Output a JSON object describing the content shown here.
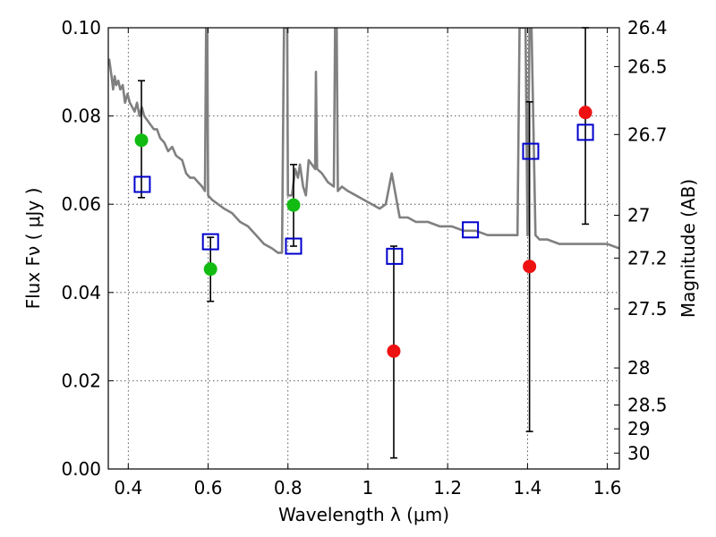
{
  "chart_data": {
    "type": "scatter",
    "title": "",
    "xlabel": "Wavelength  λ (μm)",
    "ylabel": "Flux  Fν  ( μJy )",
    "y2label": "Magnitude (AB)",
    "xlim": [
      0.35,
      1.63
    ],
    "ylim": [
      0.0,
      0.1
    ],
    "grid": true,
    "x_ticks": [
      0.4,
      0.6,
      0.8,
      1.0,
      1.2,
      1.4,
      1.6
    ],
    "x_tick_labels": [
      "0.4",
      "0.6",
      "0.8",
      "1",
      "1.2",
      "1.4",
      "1.6"
    ],
    "y_ticks": [
      0.0,
      0.02,
      0.04,
      0.06,
      0.08,
      0.1
    ],
    "y_tick_labels": [
      "0.00",
      "0.02",
      "0.04",
      "0.06",
      "0.08",
      "0.10"
    ],
    "mag_ticks": [
      {
        "flux": 0.1,
        "label": "26.4"
      },
      {
        "flux": 0.0912,
        "label": "26.5"
      },
      {
        "flux": 0.0758,
        "label": "26.7"
      },
      {
        "flux": 0.0575,
        "label": "27"
      },
      {
        "flux": 0.0478,
        "label": "27.2"
      },
      {
        "flux": 0.0363,
        "label": "27.5"
      },
      {
        "flux": 0.0229,
        "label": "28"
      },
      {
        "flux": 0.0145,
        "label": "28.5"
      },
      {
        "flux": 0.0091,
        "label": "29"
      },
      {
        "flux": 0.0036,
        "label": "30"
      }
    ],
    "colors": {
      "sed": "#808080",
      "detected": "#11bb11",
      "nondetected": "#ee1111",
      "model": "#0000cc",
      "errorbar": "#000000"
    },
    "sed_spectrum": [
      [
        0.352,
        0.093
      ],
      [
        0.358,
        0.089
      ],
      [
        0.362,
        0.086
      ],
      [
        0.366,
        0.089
      ],
      [
        0.37,
        0.087
      ],
      [
        0.375,
        0.088
      ],
      [
        0.38,
        0.086
      ],
      [
        0.386,
        0.087
      ],
      [
        0.392,
        0.083
      ],
      [
        0.398,
        0.085
      ],
      [
        0.404,
        0.083
      ],
      [
        0.41,
        0.082
      ],
      [
        0.416,
        0.081
      ],
      [
        0.422,
        0.083
      ],
      [
        0.428,
        0.08
      ],
      [
        0.434,
        0.082
      ],
      [
        0.44,
        0.08
      ],
      [
        0.448,
        0.079
      ],
      [
        0.456,
        0.078
      ],
      [
        0.464,
        0.077
      ],
      [
        0.472,
        0.077
      ],
      [
        0.48,
        0.075
      ],
      [
        0.49,
        0.074
      ],
      [
        0.5,
        0.072
      ],
      [
        0.51,
        0.073
      ],
      [
        0.52,
        0.071
      ],
      [
        0.535,
        0.07
      ],
      [
        0.545,
        0.067
      ],
      [
        0.555,
        0.066
      ],
      [
        0.565,
        0.066
      ],
      [
        0.575,
        0.065
      ],
      [
        0.585,
        0.064
      ],
      [
        0.592,
        0.063
      ],
      [
        0.595,
        0.1
      ],
      [
        0.598,
        0.1
      ],
      [
        0.6,
        0.062
      ],
      [
        0.61,
        0.061
      ],
      [
        0.625,
        0.06
      ],
      [
        0.64,
        0.059
      ],
      [
        0.66,
        0.058
      ],
      [
        0.68,
        0.056
      ],
      [
        0.7,
        0.055
      ],
      [
        0.72,
        0.053
      ],
      [
        0.74,
        0.051
      ],
      [
        0.76,
        0.05
      ],
      [
        0.775,
        0.049
      ],
      [
        0.785,
        0.049
      ],
      [
        0.79,
        0.1
      ],
      [
        0.798,
        0.1
      ],
      [
        0.8,
        0.062
      ],
      [
        0.81,
        0.062
      ],
      [
        0.818,
        0.068
      ],
      [
        0.825,
        0.066
      ],
      [
        0.83,
        0.069
      ],
      [
        0.838,
        0.064
      ],
      [
        0.845,
        0.062
      ],
      [
        0.852,
        0.07
      ],
      [
        0.86,
        0.069
      ],
      [
        0.868,
        0.068
      ],
      [
        0.87,
        0.09
      ],
      [
        0.873,
        0.068
      ],
      [
        0.885,
        0.067
      ],
      [
        0.9,
        0.065
      ],
      [
        0.915,
        0.064
      ],
      [
        0.918,
        0.1
      ],
      [
        0.922,
        0.1
      ],
      [
        0.925,
        0.063
      ],
      [
        0.935,
        0.064
      ],
      [
        0.95,
        0.063
      ],
      [
        0.97,
        0.062
      ],
      [
        0.99,
        0.061
      ],
      [
        1.01,
        0.06
      ],
      [
        1.03,
        0.059
      ],
      [
        1.045,
        0.06
      ],
      [
        1.06,
        0.067
      ],
      [
        1.08,
        0.057
      ],
      [
        1.1,
        0.057
      ],
      [
        1.12,
        0.056
      ],
      [
        1.15,
        0.056
      ],
      [
        1.18,
        0.055
      ],
      [
        1.21,
        0.055
      ],
      [
        1.24,
        0.054
      ],
      [
        1.27,
        0.054
      ],
      [
        1.3,
        0.053
      ],
      [
        1.33,
        0.053
      ],
      [
        1.36,
        0.053
      ],
      [
        1.375,
        0.053
      ],
      [
        1.38,
        0.1
      ],
      [
        1.395,
        0.1
      ],
      [
        1.4,
        0.053
      ],
      [
        1.405,
        0.1
      ],
      [
        1.41,
        0.1
      ],
      [
        1.42,
        0.053
      ],
      [
        1.43,
        0.052
      ],
      [
        1.45,
        0.052
      ],
      [
        1.48,
        0.051
      ],
      [
        1.51,
        0.051
      ],
      [
        1.54,
        0.051
      ],
      [
        1.57,
        0.051
      ],
      [
        1.6,
        0.051
      ],
      [
        1.63,
        0.05
      ]
    ],
    "observed_detected": [
      {
        "x": 0.433,
        "y": 0.0745,
        "yerr_low": 0.0615,
        "yerr_high": 0.088
      },
      {
        "x": 0.606,
        "y": 0.0453,
        "yerr_low": 0.038,
        "yerr_high": 0.0525
      },
      {
        "x": 0.814,
        "y": 0.0598,
        "yerr_low": 0.0505,
        "yerr_high": 0.069
      }
    ],
    "observed_nondetected": [
      {
        "x": 1.065,
        "y": 0.0267,
        "yerr_low": 0.0025,
        "yerr_high": 0.0505
      },
      {
        "x": 1.405,
        "y": 0.0459,
        "yerr_low": 0.0085,
        "yerr_high": 0.0832
      },
      {
        "x": 1.545,
        "y": 0.0808,
        "yerr_low": 0.0555,
        "yerr_high": 0.1
      }
    ],
    "model_photometry": [
      {
        "x": 0.435,
        "y": 0.0645
      },
      {
        "x": 0.606,
        "y": 0.0515
      },
      {
        "x": 0.814,
        "y": 0.0505
      },
      {
        "x": 1.067,
        "y": 0.0482
      },
      {
        "x": 1.257,
        "y": 0.0542
      },
      {
        "x": 1.408,
        "y": 0.072
      },
      {
        "x": 1.545,
        "y": 0.0763
      }
    ]
  }
}
